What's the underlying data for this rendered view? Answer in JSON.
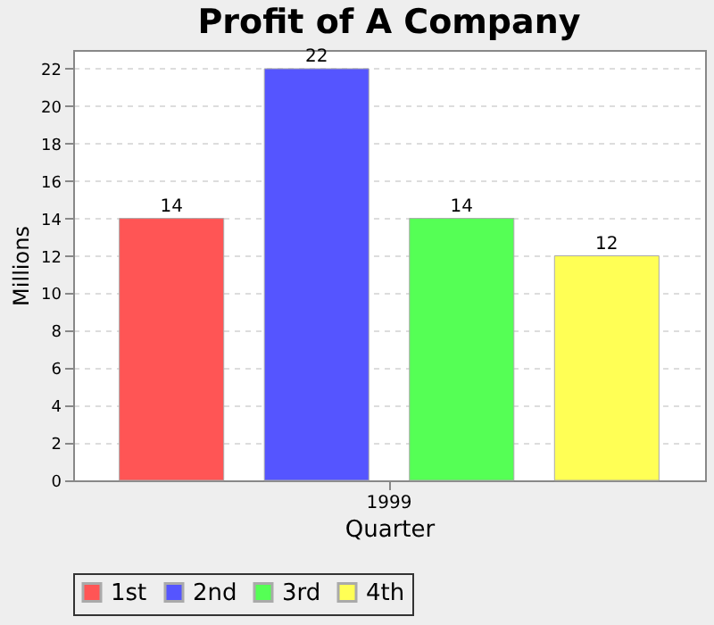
{
  "chart_data": {
    "type": "bar",
    "title": "Profit of A Company",
    "xlabel": "Quarter",
    "ylabel": "Millions",
    "categories": [
      "1999"
    ],
    "series": [
      {
        "name": "1st",
        "color": "#ff5555",
        "values": [
          14
        ]
      },
      {
        "name": "2nd",
        "color": "#5555ff",
        "values": [
          22
        ]
      },
      {
        "name": "3rd",
        "color": "#55ff55",
        "values": [
          14
        ]
      },
      {
        "name": "4th",
        "color": "#ffff55",
        "values": [
          12
        ]
      }
    ],
    "ylim": [
      0,
      23
    ],
    "yticks": [
      0,
      2,
      4,
      6,
      8,
      10,
      12,
      14,
      16,
      18,
      20,
      22
    ],
    "grid": "y",
    "legend": "bottom",
    "data_labels": true
  }
}
